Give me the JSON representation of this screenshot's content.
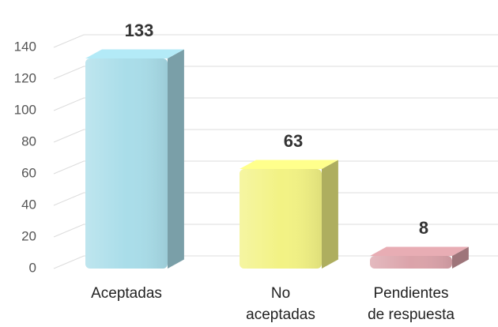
{
  "chart_data": {
    "type": "bar3d",
    "categories": [
      "Aceptadas",
      "No\naceptadas",
      "Pendientes\nde respuesta"
    ],
    "values": [
      133,
      63,
      8
    ],
    "colors": [
      "#a9dde9",
      "#f2f284",
      "#dba3aa"
    ],
    "ylim": [
      0,
      140
    ],
    "yticks": [
      0,
      20,
      40,
      60,
      80,
      100,
      120,
      140
    ],
    "grid": true
  }
}
